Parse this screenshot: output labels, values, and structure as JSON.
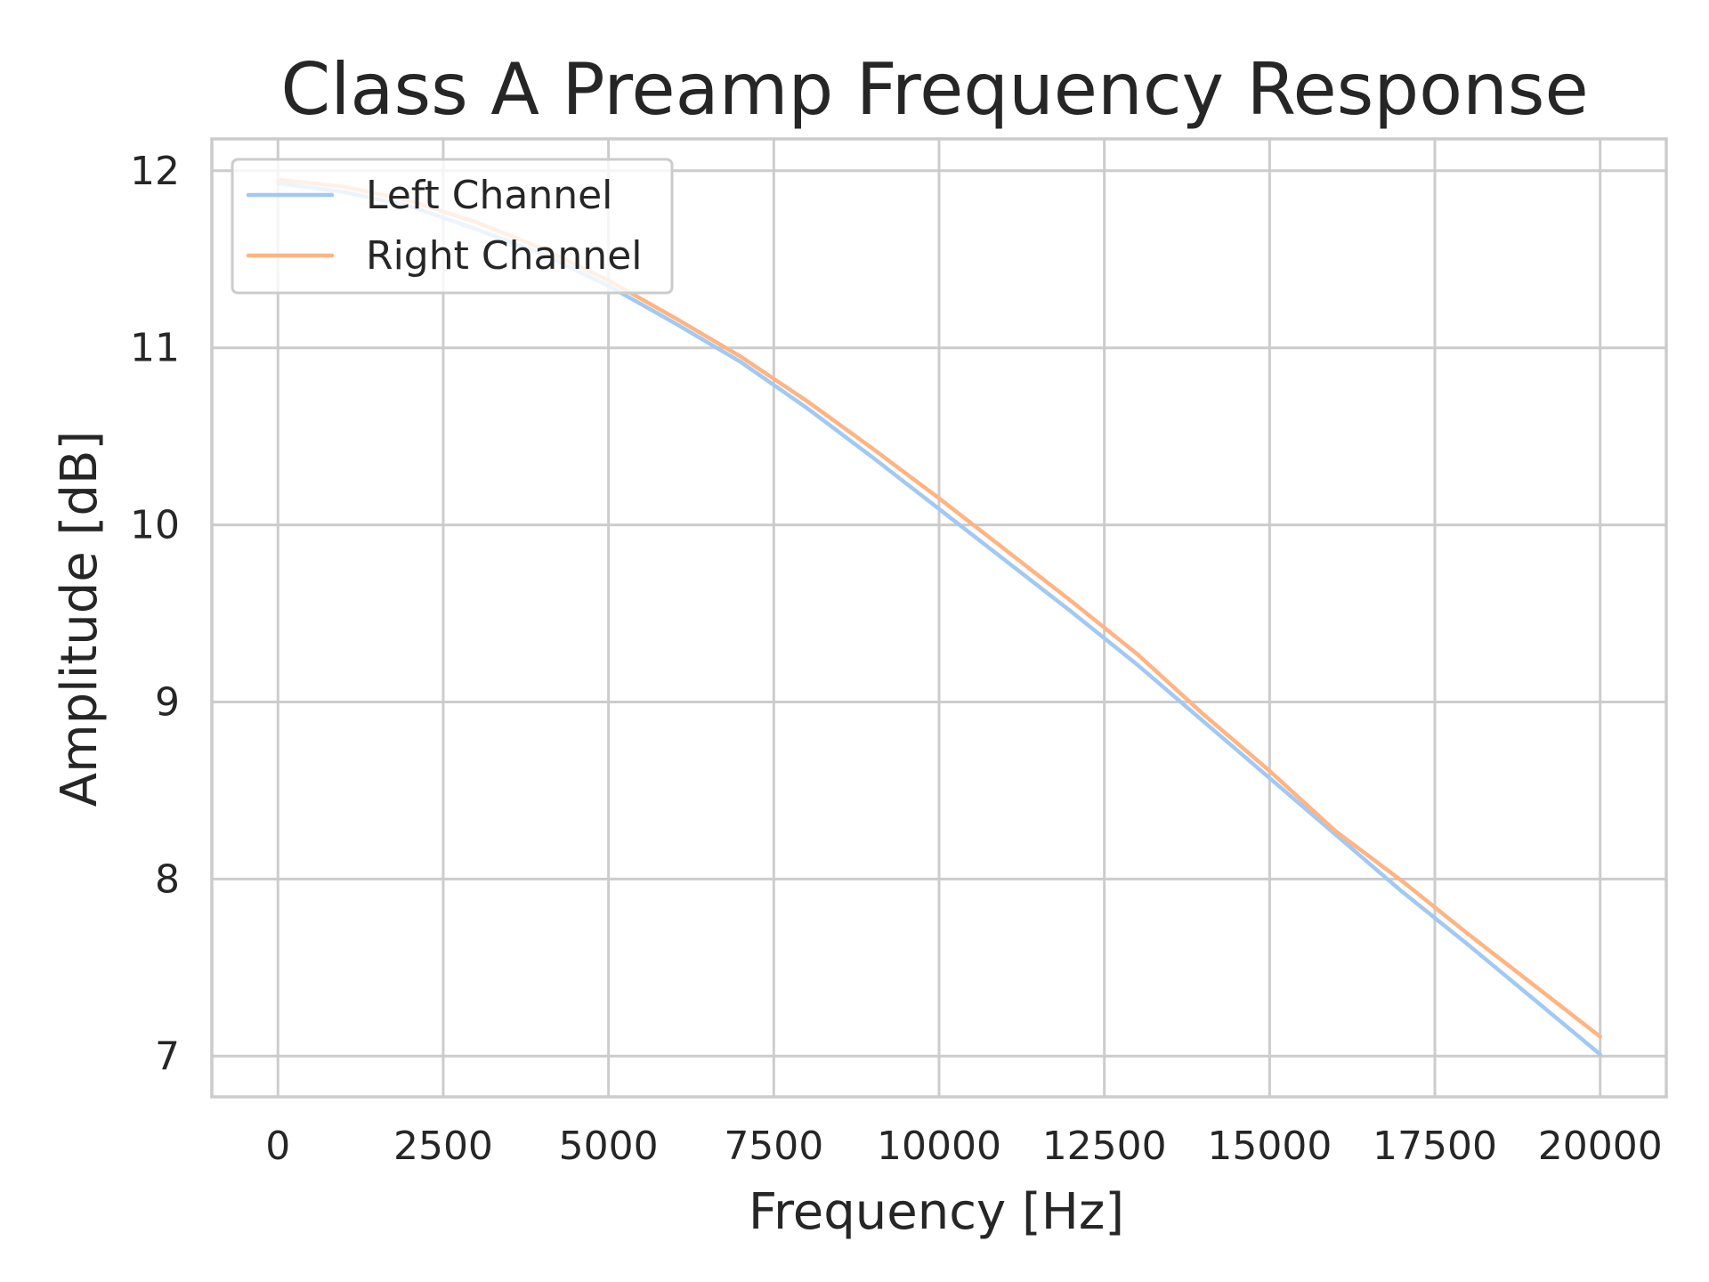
{
  "chart_data": {
    "type": "line",
    "title": "Class A Preamp Frequency Response",
    "xlabel": "Frequency [Hz]",
    "ylabel": "Amplitude [dB]",
    "xlim": [
      -1000,
      21000
    ],
    "ylim": [
      6.77,
      12.18
    ],
    "x_ticks": [
      0,
      2500,
      5000,
      7500,
      10000,
      12500,
      15000,
      17500,
      20000
    ],
    "y_ticks": [
      7,
      8,
      9,
      10,
      11,
      12
    ],
    "grid": true,
    "legend_position": "top-left",
    "x": [
      0,
      1000,
      2000,
      3000,
      4000,
      5000,
      6000,
      7000,
      8000,
      9000,
      10000,
      11000,
      12000,
      13000,
      14000,
      15000,
      16000,
      17000,
      18000,
      19000,
      20000
    ],
    "series": [
      {
        "name": "Left Channel",
        "color": "#a1c9f4",
        "values": [
          11.93,
          11.88,
          11.8,
          11.67,
          11.53,
          11.35,
          11.14,
          10.92,
          10.66,
          10.38,
          10.09,
          9.8,
          9.51,
          9.21,
          8.89,
          8.57,
          8.25,
          7.93,
          7.63,
          7.32,
          7.01
        ]
      },
      {
        "name": "Right Channel",
        "color": "#ffb482",
        "values": [
          11.95,
          11.91,
          11.83,
          11.71,
          11.56,
          11.38,
          11.17,
          10.95,
          10.7,
          10.43,
          10.15,
          9.86,
          9.57,
          9.27,
          8.93,
          8.61,
          8.27,
          7.99,
          7.69,
          7.4,
          7.11
        ]
      }
    ]
  }
}
